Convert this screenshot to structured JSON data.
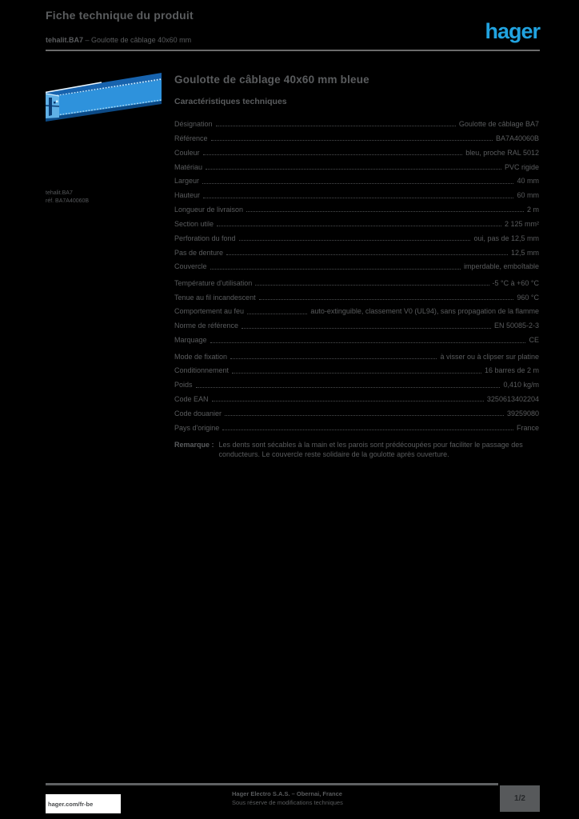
{
  "colors": {
    "page_background": "#000000",
    "text_gray": "#5a5c5e",
    "accent_logo_blue": "#21a3e0",
    "product_blue": "#2e92dc",
    "rule_gray": "#6b6b6b"
  },
  "header": {
    "doc_title": "Fiche technique du produit",
    "doc_subtitle_bold": "tehalit.BA7",
    "doc_subtitle_rest": " – Goulotte de câblage 40x60 mm",
    "logo_text": "hager"
  },
  "product": {
    "caption_line1": "tehalit.BA7",
    "caption_line2": "réf. BA7A40060B",
    "title": "Goulotte de câblage 40x60 mm bleue",
    "section_heading": "Caractéristiques techniques"
  },
  "specs": {
    "groups": [
      {
        "rows": [
          {
            "label": "Désignation",
            "value": "Goulotte de câblage BA7"
          },
          {
            "label": "Référence",
            "value": "BA7A40060B"
          },
          {
            "label": "Couleur",
            "value": "bleu, proche RAL 5012"
          },
          {
            "label": "Matériau",
            "value": "PVC rigide"
          },
          {
            "label": "Largeur",
            "value": "40 mm"
          },
          {
            "label": "Hauteur",
            "value": "60 mm"
          },
          {
            "label": "Longueur de livraison",
            "value": "2 m"
          },
          {
            "label": "Section utile",
            "value": "2 125 mm²"
          },
          {
            "label": "Perforation du fond",
            "value": "oui, pas de 12,5 mm"
          },
          {
            "label": "Pas de denture",
            "value": "12,5 mm"
          },
          {
            "label": "Couvercle",
            "value": "imperdable, emboîtable"
          }
        ]
      },
      {
        "rows": [
          {
            "label": "Température d'utilisation",
            "value": "-5 °C à +60 °C"
          },
          {
            "label": "Tenue au fil incandescent",
            "value": "960 °C"
          },
          {
            "label": "Comportement au feu",
            "value": "auto-extinguible, classement V0 (UL94), sans propagation de la flamme"
          },
          {
            "label": "Norme de référence",
            "value": "EN 50085-2-3"
          },
          {
            "label": "Marquage",
            "value": "CE"
          }
        ]
      },
      {
        "rows": [
          {
            "label": "Mode de fixation",
            "value": "à visser ou à clipser sur platine"
          },
          {
            "label": "Conditionnement",
            "value": "16 barres de 2 m"
          },
          {
            "label": "Poids",
            "value": "0,410 kg/m"
          },
          {
            "label": "Code EAN",
            "value": "3250613402204"
          },
          {
            "label": "Code douanier",
            "value": "39259080"
          },
          {
            "label": "Pays d'origine",
            "value": "France"
          }
        ]
      }
    ]
  },
  "note": {
    "label": "Remarque :",
    "text": "Les dents sont sécables à la main et les parois sont prédécoupées pour faciliter le passage des conducteurs. Le couvercle reste solidaire de la goulotte après ouverture."
  },
  "footer": {
    "link": "hager.com/fr-be",
    "line1": "Hager Electro S.A.S. – Obernai, France",
    "line2": "Sous réserve de modifications techniques",
    "page_badge": "1/2"
  }
}
